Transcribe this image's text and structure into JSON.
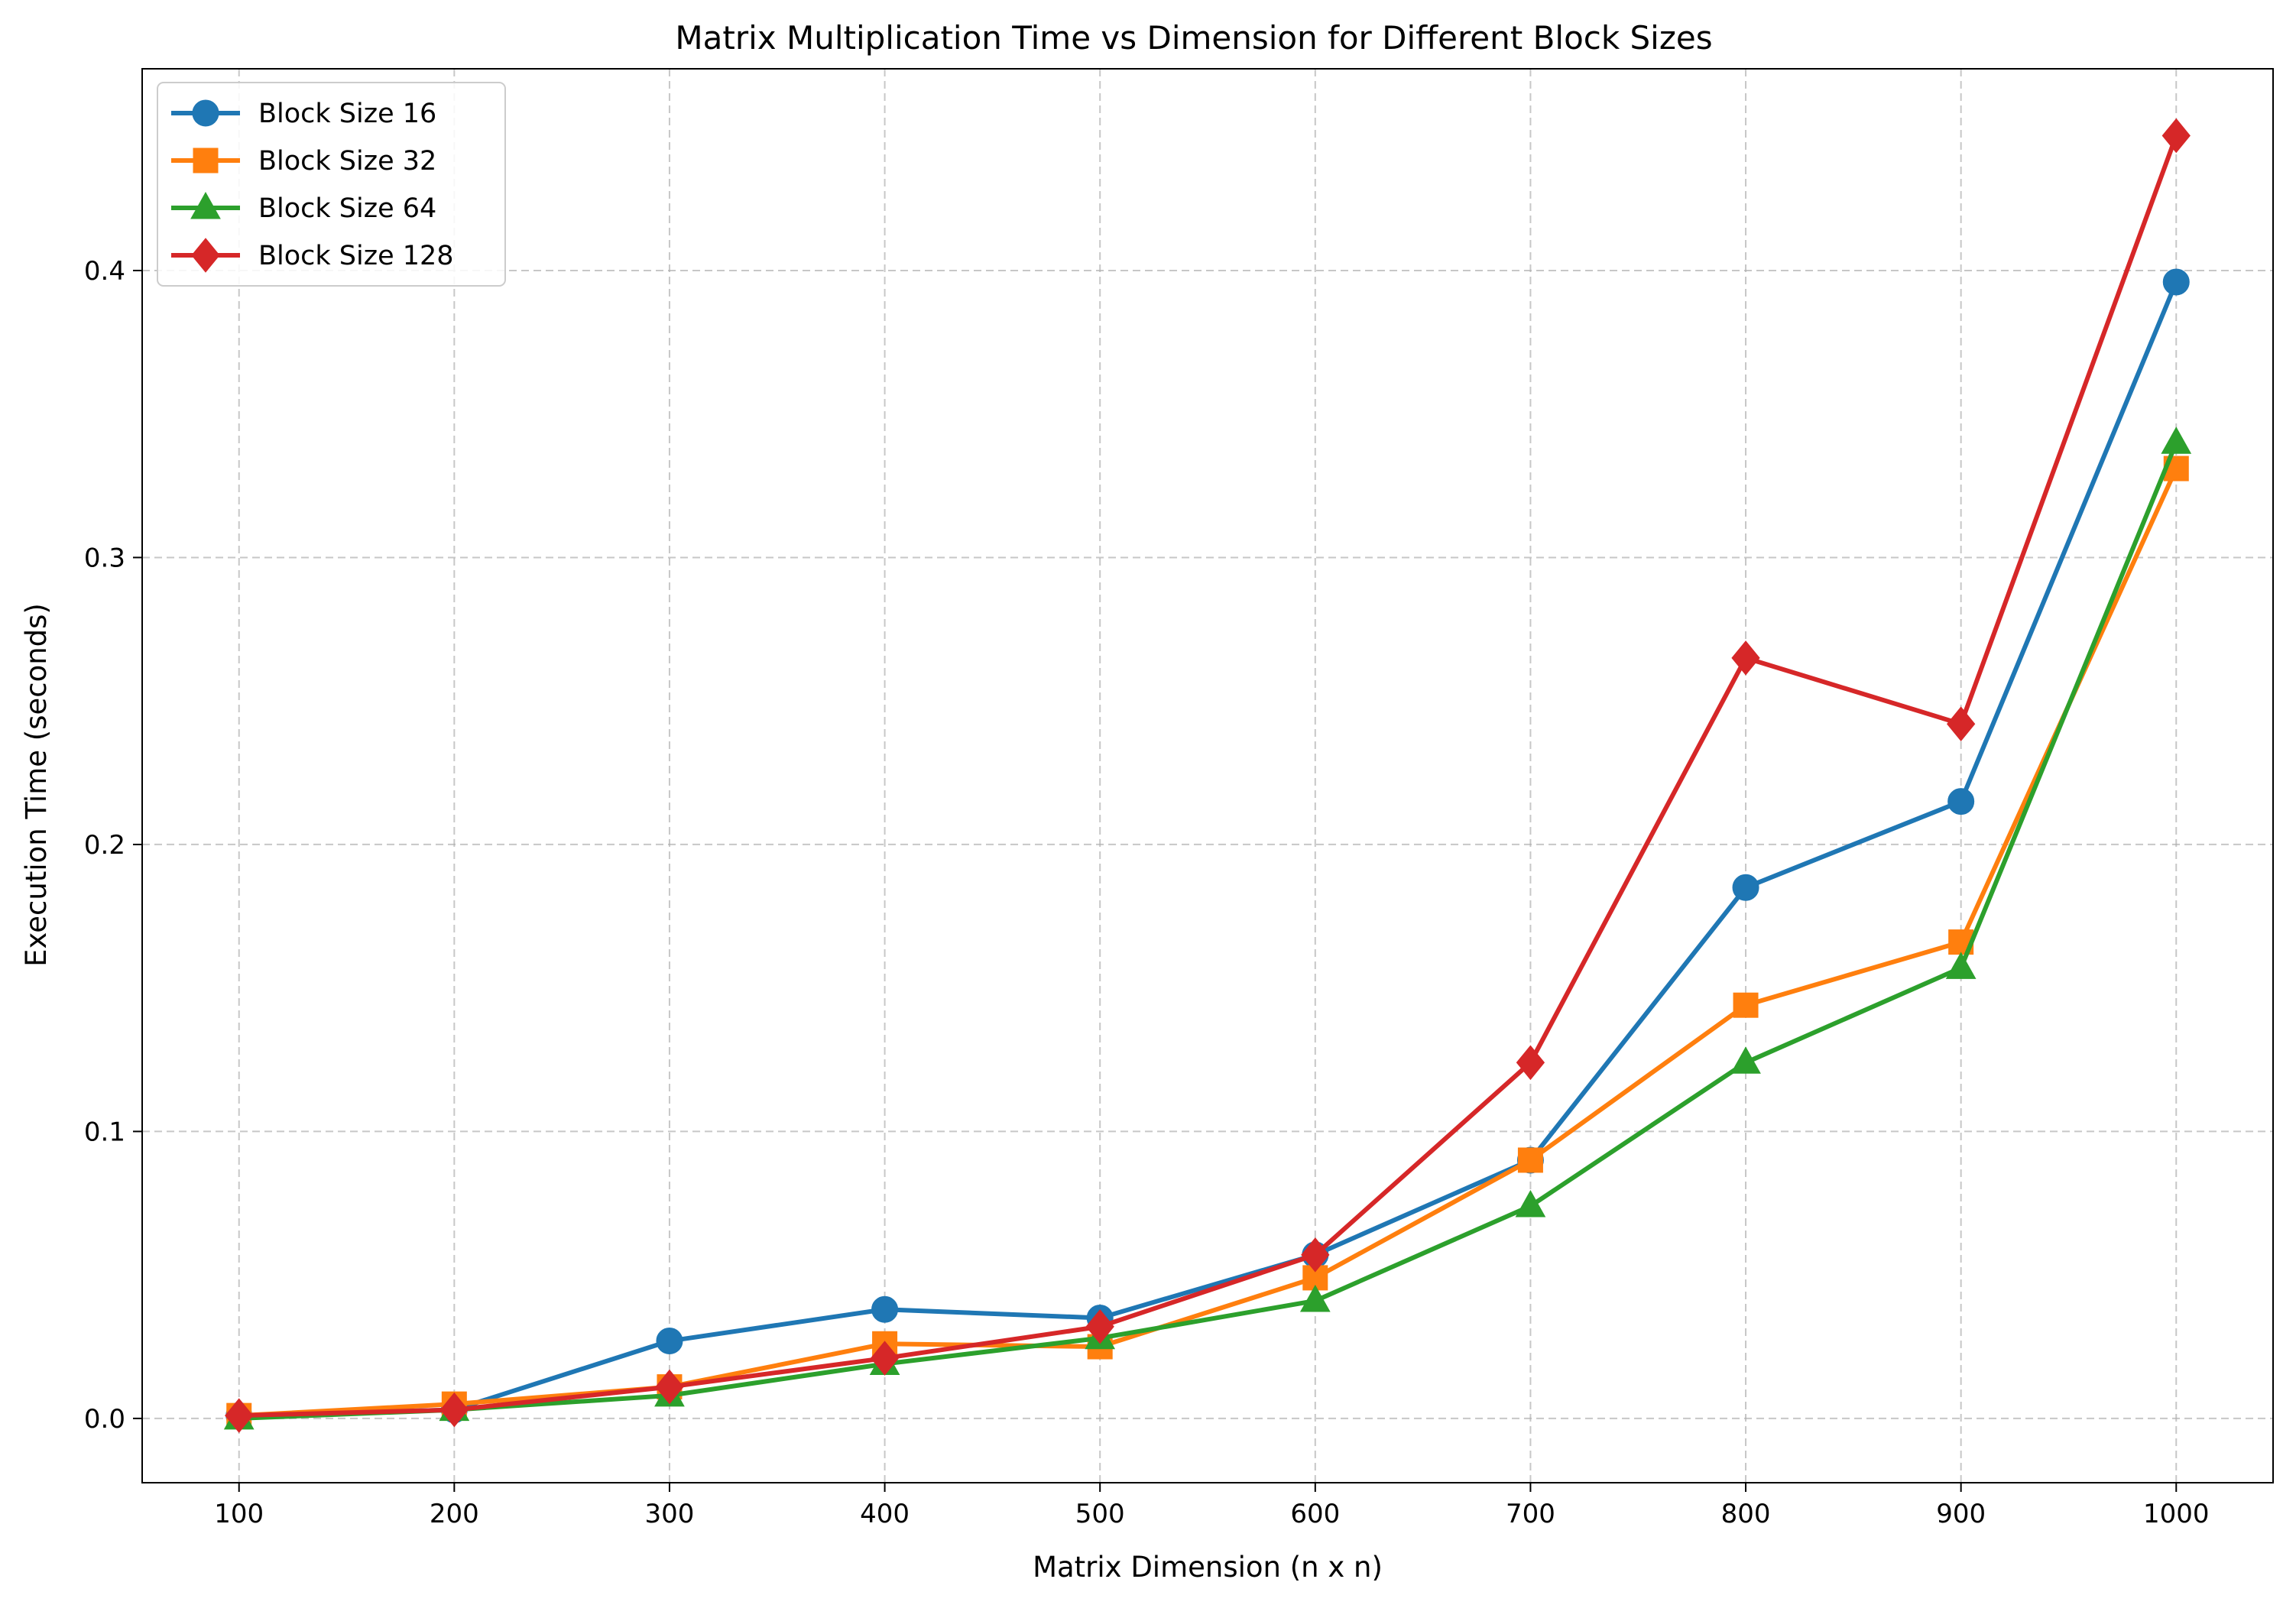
{
  "chart_data": {
    "type": "line",
    "title": "Matrix Multiplication Time vs Dimension for Different Block Sizes",
    "xlabel": "Matrix Dimension (n x n)",
    "ylabel": "Execution Time (seconds)",
    "x": [
      100,
      200,
      300,
      400,
      500,
      600,
      700,
      800,
      900,
      1000
    ],
    "xticks": [
      "100",
      "200",
      "300",
      "400",
      "500",
      "600",
      "700",
      "800",
      "900",
      "1000"
    ],
    "yticks": [
      "0.0",
      "0.1",
      "0.2",
      "0.3",
      "0.4"
    ],
    "xlim": [
      55,
      1045
    ],
    "ylim": [
      -0.0224,
      0.4703
    ],
    "grid": true,
    "legend_position": "upper-left",
    "series": [
      {
        "name": "Block Size 16",
        "color": "#1f77b4",
        "marker": "circle",
        "values": [
          0.001,
          0.003,
          0.027,
          0.038,
          0.035,
          0.057,
          0.09,
          0.185,
          0.215,
          0.396
        ]
      },
      {
        "name": "Block Size 32",
        "color": "#ff7f0e",
        "marker": "square",
        "values": [
          0.001,
          0.005,
          0.011,
          0.026,
          0.025,
          0.049,
          0.09,
          0.144,
          0.166,
          0.331
        ]
      },
      {
        "name": "Block Size 64",
        "color": "#2ca02c",
        "marker": "triangle",
        "values": [
          0.0,
          0.003,
          0.008,
          0.019,
          0.028,
          0.041,
          0.074,
          0.124,
          0.157,
          0.34
        ]
      },
      {
        "name": "Block Size 128",
        "color": "#d62728",
        "marker": "diamond",
        "values": [
          0.001,
          0.003,
          0.011,
          0.021,
          0.032,
          0.057,
          0.124,
          0.265,
          0.242,
          0.447
        ]
      }
    ]
  }
}
